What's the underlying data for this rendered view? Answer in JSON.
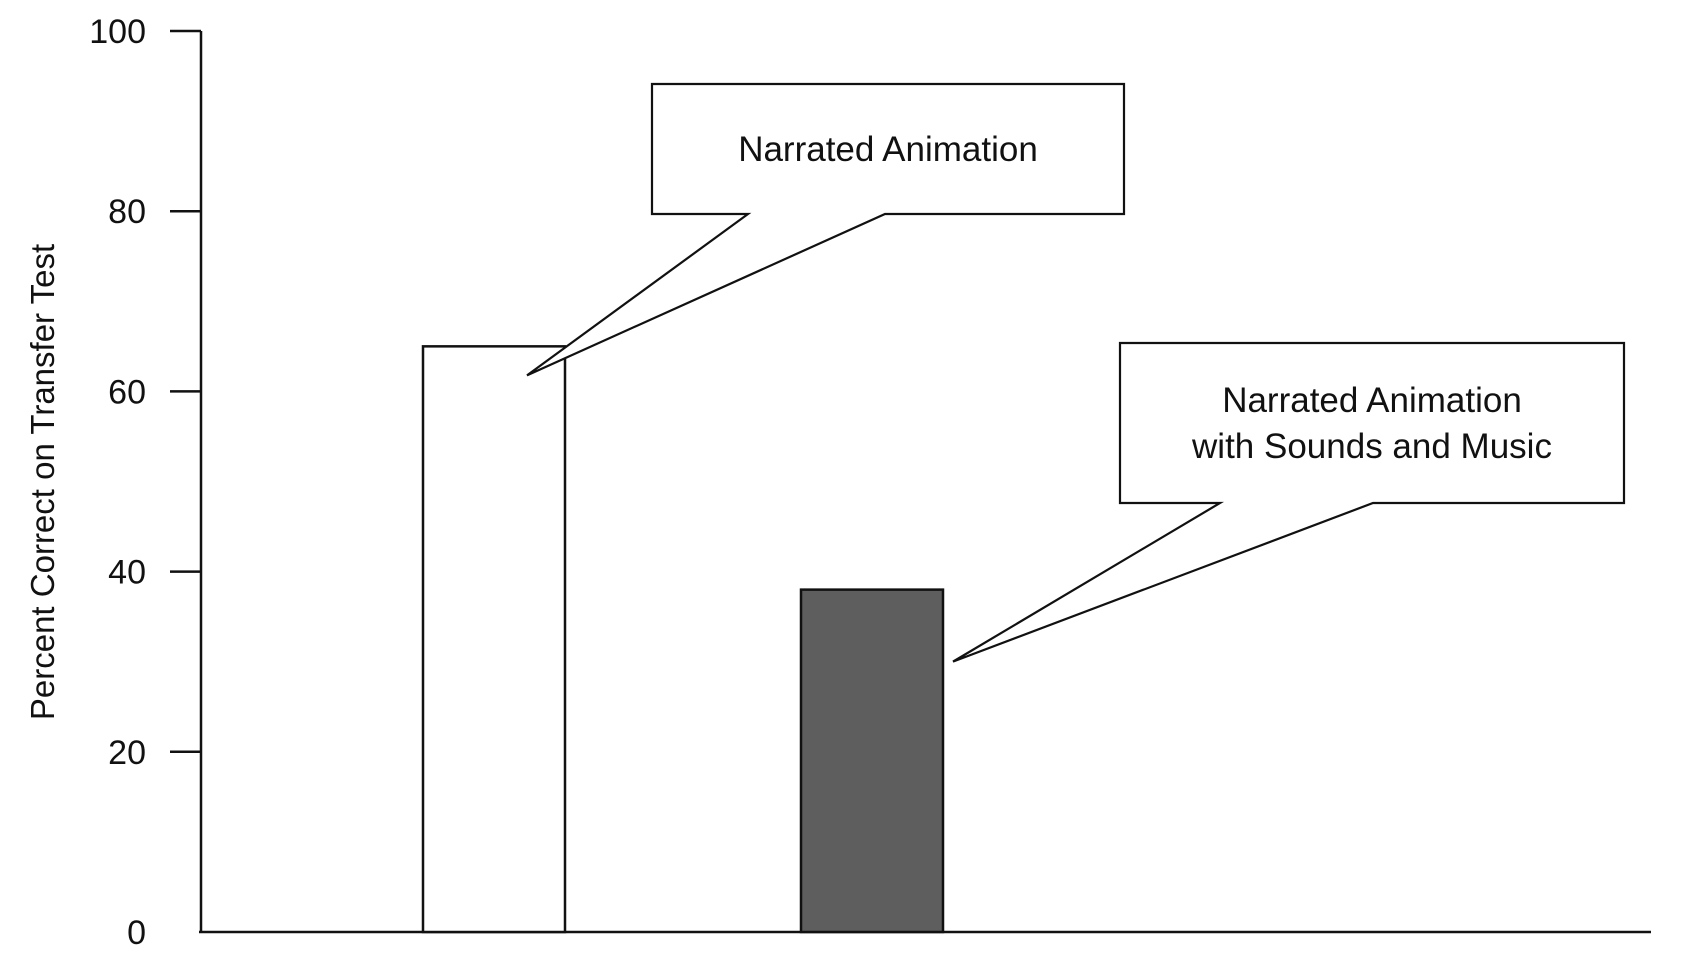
{
  "chart_data": {
    "type": "bar",
    "categories": [
      "Narrated Animation",
      "Narrated Animation with Sounds and Music"
    ],
    "values": [
      65,
      38
    ],
    "title": "",
    "xlabel": "",
    "ylabel": "Percent Correct on Transfer Test",
    "ylim": [
      0,
      100
    ],
    "yticks": [
      "0",
      "20",
      "40",
      "60",
      "80",
      "100"
    ],
    "grid": false,
    "legend": "none",
    "bar_colors": [
      "#ffffff",
      "#5e5e5e"
    ],
    "annotations": [
      {
        "lines": [
          "Narrated Animation"
        ],
        "points_to": "Narrated Animation"
      },
      {
        "lines": [
          "Narrated Animation",
          "with Sounds and Music"
        ],
        "points_to": "Narrated Animation with Sounds and Music"
      }
    ]
  }
}
